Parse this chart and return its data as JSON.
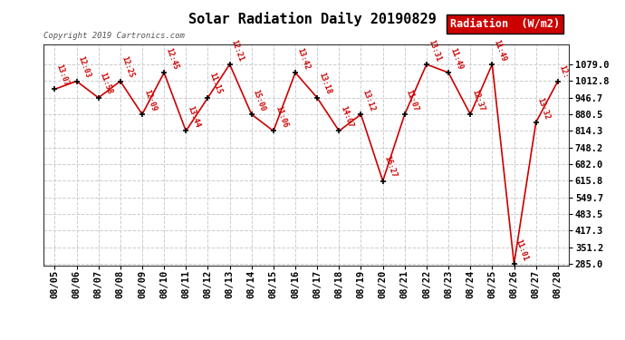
{
  "title": "Solar Radiation Daily 20190829",
  "copyright": "Copyright 2019 Cartronics.com",
  "background_color": "#ffffff",
  "plot_background": "#ffffff",
  "line_color": "#cc0000",
  "grid_color": "#cccccc",
  "dates": [
    "08/05",
    "08/06",
    "08/07",
    "08/08",
    "08/09",
    "08/10",
    "08/11",
    "08/12",
    "08/13",
    "08/14",
    "08/15",
    "08/16",
    "08/17",
    "08/18",
    "08/19",
    "08/20",
    "08/21",
    "08/22",
    "08/23",
    "08/24",
    "08/25",
    "08/26",
    "08/27",
    "08/28"
  ],
  "values": [
    980,
    1012,
    946,
    1012,
    880,
    1046,
    814,
    946,
    1079,
    880,
    814,
    1046,
    946,
    814,
    880,
    615,
    880,
    1079,
    1046,
    880,
    1079,
    285,
    848,
    1012
  ],
  "labels": [
    "13:07",
    "12:03",
    "11:58",
    "12:25",
    "12:09",
    "12:45",
    "13:44",
    "11:15",
    "12:21",
    "15:00",
    "11:06",
    "13:42",
    "13:18",
    "14:07",
    "13:12",
    "16:27",
    "11:07",
    "13:31",
    "11:49",
    "12:37",
    "11:49",
    "11:01",
    "13:32",
    "12:"
  ],
  "ylim_min": 285.0,
  "ylim_max": 1079.0,
  "yticks": [
    285.0,
    351.2,
    417.3,
    483.5,
    549.7,
    615.8,
    682.0,
    748.2,
    814.3,
    880.5,
    946.7,
    1012.8,
    1079.0
  ],
  "legend_label": "Radiation  (W/m2)",
  "legend_bg": "#cc0000",
  "legend_fg": "#ffffff"
}
